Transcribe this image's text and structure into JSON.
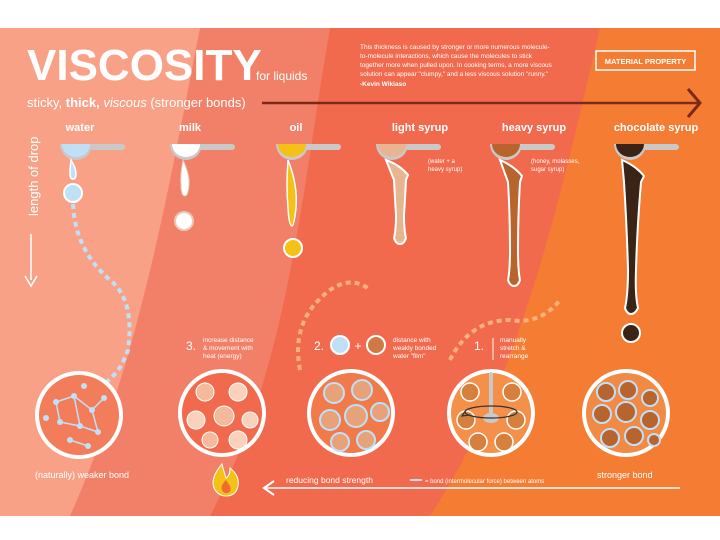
{
  "header": {
    "title": "VISCOSITY",
    "subtitle": "for liquids",
    "quote_lines": [
      "This thickness is caused by stronger or more numerous molecule-",
      "to-molecule interactions, which cause the molecules to stick",
      "together more when pulled upon. In cooking terms, a more viscous",
      "solution can appear \"clumpy,\" and a less viscous solution \"runny.\""
    ],
    "quote_author": "-Kevin Wikiaso",
    "badge": "MATERIAL PROPERTY"
  },
  "scale": {
    "w1": "sticky, ",
    "w2": "thick, ",
    "w3": "viscous",
    "w4": " (stronger bonds)",
    "side_label": "length of drop"
  },
  "liquids": [
    {
      "name": "water",
      "color": "#bfe0f7"
    },
    {
      "name": "milk",
      "color": "#ffffff"
    },
    {
      "name": "oil",
      "color": "#f5c116"
    },
    {
      "name": "light syrup",
      "color": "#e8b592",
      "note_lines": [
        "(water + a",
        "heavy syrup)"
      ]
    },
    {
      "name": "heavy syrup",
      "color": "#b8642e",
      "note_lines": [
        "(honey, molasses,",
        "sugar syrup)"
      ]
    },
    {
      "name": "chocolate syrup",
      "color": "#3a2418"
    }
  ],
  "steps": [
    {
      "num": "3.",
      "lines": [
        "increase distance",
        "& movement with",
        "heat (energy)"
      ]
    },
    {
      "num": "2.",
      "lines": [
        "distance with",
        "weakly bonded",
        "water \"film\""
      ]
    },
    {
      "num": "1.",
      "lines": [
        "manually",
        "stretch &",
        "rearrange"
      ]
    }
  ],
  "bottom": {
    "weak": "(naturally) weaker bond",
    "reducing": "reducing bond strength",
    "legend": "= bond (intermolecular force) between atoms",
    "strong": "stronger bond"
  },
  "colors": {
    "bg_left": "#f9a187",
    "bg_mid": "#f28068",
    "bg_right": "#f26b2c",
    "bg_bright": "#f58a3a",
    "water_blue": "#bfe0f7"
  }
}
